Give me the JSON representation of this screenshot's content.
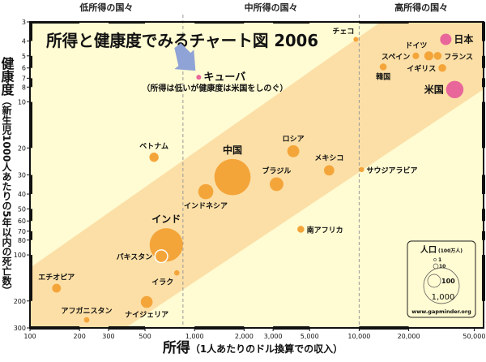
{
  "chart_data": {
    "type": "scatter",
    "title": "所得と健康度でみるチャート図 2006",
    "xlabel": "所得",
    "xlabel_note": "（1人あたりのドル換算での収入）",
    "ylabel": "健康度",
    "ylabel_note": "（新生児1000人あたりの5年以内の死亡数）",
    "x_scale": "log",
    "y_scale": "log",
    "y_inverted": true,
    "xlim": [
      100,
      57000
    ],
    "ylim": [
      3,
      300
    ],
    "grid": false,
    "x_ticks": [
      100,
      200,
      300,
      500,
      1000,
      2000,
      3000,
      5000,
      10000,
      20000,
      50000
    ],
    "x_tick_labels": [
      "100",
      "200",
      "300",
      "500",
      "1,000",
      "2,000",
      "3,000",
      "5,000",
      "10,000",
      "20,000",
      "50,000"
    ],
    "y_ticks": [
      3,
      4,
      5,
      6,
      7,
      8,
      10,
      20,
      30,
      40,
      50,
      60,
      70,
      80,
      100,
      200,
      300
    ],
    "y_tick_labels": [
      "3",
      "4",
      "5",
      "6",
      "7",
      "8",
      "10",
      "20",
      "30",
      "40",
      "50",
      "60",
      "70",
      "80",
      "100",
      "200",
      "300"
    ],
    "income_groups": [
      {
        "label": "低所得の国々",
        "range": [
          100,
          850
        ]
      },
      {
        "label": "中所得の国々",
        "range": [
          850,
          10000
        ]
      },
      {
        "label": "高所得の国々",
        "range": [
          10000,
          57000
        ]
      }
    ],
    "group_dividers": [
      850,
      10000
    ],
    "colors": {
      "background": "#FFFBD2",
      "band": "#FCDFA6",
      "bubble": "#F4A53A",
      "highlight": "#E8669A",
      "arrow": "#8FA3D6"
    },
    "points": [
      {
        "name": "チェコ",
        "x": 9550,
        "y": 3.9,
        "pop": 10,
        "color": "bubble",
        "label_pos": "above-left"
      },
      {
        "name": "日本",
        "x": 33600,
        "y": 3.9,
        "pop": 128,
        "color": "highlight",
        "label_pos": "right"
      },
      {
        "name": "ドイツ",
        "x": 26500,
        "y": 5.0,
        "pop": 82,
        "color": "bubble",
        "label_pos": "above-left"
      },
      {
        "name": "フランス",
        "x": 30000,
        "y": 5.0,
        "pop": 61,
        "color": "bubble",
        "label_pos": "right"
      },
      {
        "name": "スペイン",
        "x": 22100,
        "y": 5.0,
        "pop": 44,
        "color": "bubble",
        "label_pos": "left"
      },
      {
        "name": "イギリス",
        "x": 32000,
        "y": 6.0,
        "pop": 60,
        "color": "bubble",
        "label_pos": "left"
      },
      {
        "name": "韓国",
        "x": 14000,
        "y": 5.9,
        "pop": 48,
        "color": "bubble",
        "label_pos": "below"
      },
      {
        "name": "米国",
        "x": 38100,
        "y": 8.3,
        "pop": 300,
        "color": "highlight",
        "label_pos": "left"
      },
      {
        "name": "ベトナム",
        "x": 567,
        "y": 23,
        "pop": 85,
        "color": "bubble",
        "label_pos": "above"
      },
      {
        "name": "中国",
        "x": 1700,
        "y": 31,
        "pop": 1300,
        "color": "bubble",
        "label_pos": "above"
      },
      {
        "name": "インドネシア",
        "x": 1170,
        "y": 38.6,
        "pop": 225,
        "color": "bubble",
        "label_pos": "below"
      },
      {
        "name": "ブラジル",
        "x": 3150,
        "y": 34.5,
        "pop": 186,
        "color": "bubble",
        "label_pos": "above"
      },
      {
        "name": "ロシア",
        "x": 3980,
        "y": 21,
        "pop": 143,
        "color": "bubble",
        "label_pos": "above"
      },
      {
        "name": "メキシコ",
        "x": 6570,
        "y": 28,
        "pop": 105,
        "color": "bubble",
        "label_pos": "above-right"
      },
      {
        "name": "サウジアラビア",
        "x": 10350,
        "y": 27.7,
        "pop": 25,
        "color": "bubble",
        "label_pos": "right"
      },
      {
        "name": "南アフリカ",
        "x": 4420,
        "y": 68,
        "pop": 47,
        "color": "bubble",
        "label_pos": "right"
      },
      {
        "name": "インド",
        "x": 673,
        "y": 86,
        "pop": 1100,
        "color": "bubble",
        "label_pos": "above"
      },
      {
        "name": "パキスタン",
        "x": 628,
        "y": 102,
        "pop": 160,
        "color": "bubble",
        "label_pos": "left",
        "outline": true
      },
      {
        "name": "イラク",
        "x": 780,
        "y": 131,
        "pop": 28,
        "color": "bubble",
        "label_pos": "below-left"
      },
      {
        "name": "エチオピア",
        "x": 145,
        "y": 165,
        "pop": 77,
        "color": "bubble",
        "label_pos": "above"
      },
      {
        "name": "ナイジェリア",
        "x": 512,
        "y": 203,
        "pop": 140,
        "color": "bubble",
        "label_pos": "below"
      },
      {
        "name": "アフガニスタン",
        "x": 221,
        "y": 266,
        "pop": 30,
        "color": "bubble",
        "label_pos": "above"
      },
      {
        "name": "キューバ",
        "x": 1060,
        "y": 6.9,
        "pop": 11,
        "color": "highlight",
        "label_pos": "right",
        "emphasis": true
      }
    ],
    "annotation": {
      "target": "キューバ",
      "text": "（所得は低いが健康度は米国をしのぐ）"
    },
    "legend": {
      "title": "人口",
      "unit": "(100万人)",
      "sizes": [
        1,
        10,
        100,
        1000
      ],
      "size_labels": [
        "1",
        "10",
        "100",
        "1,000"
      ],
      "source": "www.gapminder.org",
      "placement": "bottom-right"
    }
  }
}
